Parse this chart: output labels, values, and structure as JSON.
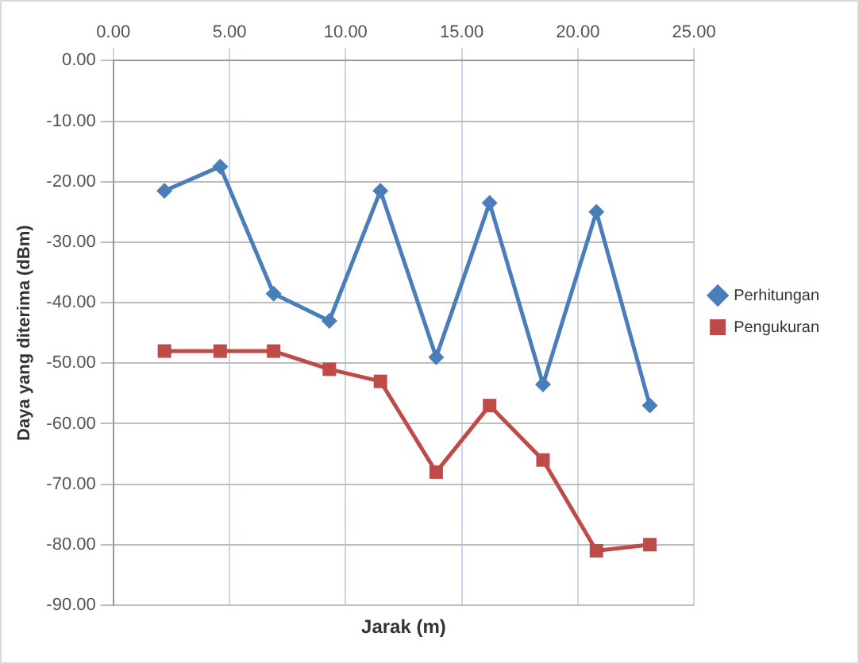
{
  "chart_data": {
    "type": "line",
    "xlabel": "Jarak (m)",
    "ylabel": "Daya yang diterima (dBm)",
    "x": [
      2.2,
      4.6,
      6.9,
      9.3,
      11.5,
      13.9,
      16.2,
      18.5,
      20.8,
      23.1
    ],
    "series": [
      {
        "name": "Perhitungan",
        "color": "#4a7ebb",
        "marker": "diamond",
        "values": [
          -21.5,
          -17.5,
          -38.5,
          -43,
          -21.5,
          -49,
          -23.5,
          -53.5,
          -25,
          -57
        ]
      },
      {
        "name": "Pengukuran",
        "color": "#be4b48",
        "marker": "square",
        "values": [
          -48,
          -48,
          -48,
          -51,
          -53,
          -68,
          -57,
          -66,
          -81,
          -80
        ]
      }
    ],
    "xlim": [
      0,
      25
    ],
    "xticks": [
      {
        "value": 0,
        "label": "0.00"
      },
      {
        "value": 5,
        "label": "5.00"
      },
      {
        "value": 10,
        "label": "10.00"
      },
      {
        "value": 15,
        "label": "15.00"
      },
      {
        "value": 20,
        "label": "20.00"
      },
      {
        "value": 25,
        "label": "25.00"
      }
    ],
    "ylim": [
      -90,
      0
    ],
    "yticks": [
      {
        "value": 0,
        "label": "0.00"
      },
      {
        "value": -10,
        "label": "-10.00"
      },
      {
        "value": -20,
        "label": "-20.00"
      },
      {
        "value": -30,
        "label": "-30.00"
      },
      {
        "value": -40,
        "label": "-40.00"
      },
      {
        "value": -50,
        "label": "-50.00"
      },
      {
        "value": -60,
        "label": "-60.00"
      },
      {
        "value": -70,
        "label": "-70.00"
      },
      {
        "value": -80,
        "label": "-80.00"
      },
      {
        "value": -90,
        "label": "-90.00"
      }
    ],
    "grid": true,
    "legend": "right"
  }
}
